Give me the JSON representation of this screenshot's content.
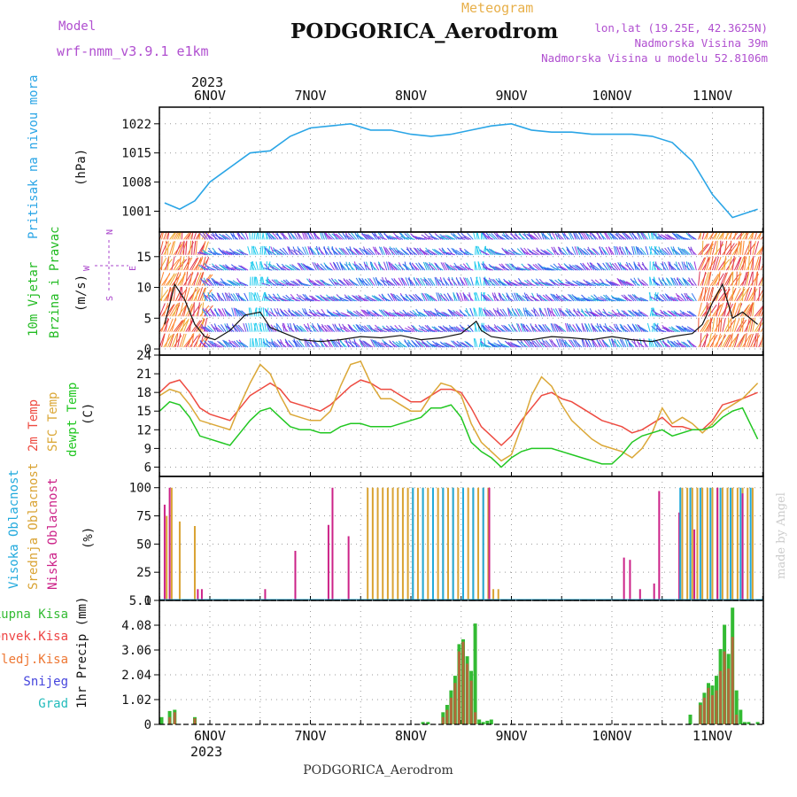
{
  "header": {
    "model_label": "Model",
    "model_name": "wrf-nmm_v3.9.1 e1km",
    "title": "PODGORICA_Aerodrom",
    "subtitle": "Meteogram",
    "lonlat": "lon,lat (19.25E, 42.3625N)",
    "elevation": "Nadmorska Visina 39m",
    "model_elevation": "Nadmorska Visina u modelu 52.8106m",
    "year_top": "2023",
    "year_bottom": "2023",
    "footer": "PODGORICA_Aerodrom",
    "watermark": "made by Angel"
  },
  "colors": {
    "pressure": "#2aa5e6",
    "temp2m": "#ee4b41",
    "sfc_temp": "#dba838",
    "dewpoint": "#22c722",
    "high_cloud": "#22aadd",
    "mid_cloud": "#d9a333",
    "low_cloud": "#cc2288",
    "total_precip": "#33bb33",
    "conv_precip": "#ee4444",
    "frz_precip": "#ee7733",
    "snow": "#4444dd",
    "hail": "#22bbbb",
    "wind_label": "#22bb22",
    "wind_dir_label": "#aa44cc"
  },
  "chart_data": [
    {
      "type": "line",
      "panel": "pressure",
      "ylabel_main": "Pritisak na nivou mora",
      "ylabel_unit": "(hPa)",
      "x_tick_labels": [
        "6NOV",
        "7NOV",
        "8NOV",
        "9NOV",
        "10NOV",
        "11NOV"
      ],
      "x_days": [
        0.5,
        1,
        1.5,
        2,
        2.5,
        3,
        3.5,
        4,
        4.5,
        5,
        5.5,
        6,
        6.5
      ],
      "ylim": [
        996,
        1026
      ],
      "yticks": [
        1001,
        1008,
        1015,
        1022
      ],
      "series": [
        {
          "x": [
            0.55,
            0.7,
            0.85,
            1.0,
            1.2,
            1.4,
            1.6,
            1.8,
            2.0,
            2.2,
            2.4,
            2.6,
            2.8,
            3.0,
            3.2,
            3.4,
            3.6,
            3.8,
            4.0,
            4.2,
            4.4,
            4.6,
            4.8,
            5.0,
            5.2,
            5.4,
            5.6,
            5.8,
            6.0,
            6.2,
            6.45
          ],
          "values": [
            1003,
            1001.5,
            1003.5,
            1008,
            1011.5,
            1015,
            1015.5,
            1019,
            1021,
            1021.5,
            1022,
            1020.5,
            1020.5,
            1019.5,
            1019,
            1019.5,
            1020.5,
            1021.5,
            1022,
            1020.5,
            1020,
            1020,
            1019.5,
            1019.5,
            1019.5,
            1019,
            1017.5,
            1013,
            1005,
            999.5,
            1001.5
          ]
        }
      ]
    },
    {
      "type": "line",
      "panel": "wind",
      "ylabel_main": "10m Vjetar",
      "ylabel_sub": "Brzina i Pravac",
      "ylabel_unit": "(m/s)",
      "direction_key": [
        "N",
        "E",
        "W",
        "S"
      ],
      "ylim": [
        -1,
        19
      ],
      "yticks": [
        0,
        5,
        10,
        15
      ],
      "series": [
        {
          "name": "speed",
          "x": [
            0.55,
            0.65,
            0.75,
            0.85,
            0.95,
            1.05,
            1.2,
            1.35,
            1.5,
            1.6,
            1.75,
            1.9,
            2.1,
            2.3,
            2.5,
            2.7,
            2.9,
            3.1,
            3.3,
            3.5,
            3.65,
            3.7,
            3.8,
            4.0,
            4.2,
            4.4,
            4.6,
            4.8,
            5.0,
            5.2,
            5.4,
            5.6,
            5.8,
            5.9,
            6.0,
            6.1,
            6.2,
            6.3,
            6.45
          ],
          "values": [
            4,
            10.5,
            8,
            4,
            2,
            1.5,
            3,
            5.5,
            6,
            3.5,
            2.5,
            1.5,
            1.2,
            1.5,
            2,
            1.8,
            2.2,
            1.5,
            1.8,
            2.5,
            4.5,
            3,
            2,
            1.5,
            1.5,
            2,
            1.8,
            1.5,
            2,
            1.5,
            1.2,
            2,
            2.5,
            4,
            7.5,
            10.5,
            5,
            6,
            4
          ]
        }
      ]
    },
    {
      "type": "line",
      "panel": "temperature",
      "ylabel_main": "2m Temp",
      "ylabel_sfc": "SFC Temp",
      "ylabel_dew": "dewpt Temp",
      "ylabel_unit": "(C)",
      "ylim": [
        4.5,
        24
      ],
      "yticks": [
        6,
        9,
        12,
        15,
        18,
        21,
        24
      ],
      "series": [
        {
          "name": "2m Temp",
          "x": [
            0.5,
            0.6,
            0.7,
            0.8,
            0.9,
            1.0,
            1.1,
            1.2,
            1.3,
            1.4,
            1.5,
            1.6,
            1.7,
            1.8,
            1.9,
            2.0,
            2.1,
            2.2,
            2.3,
            2.4,
            2.5,
            2.6,
            2.7,
            2.8,
            2.9,
            3.0,
            3.1,
            3.2,
            3.3,
            3.4,
            3.5,
            3.6,
            3.7,
            3.8,
            3.9,
            4.0,
            4.1,
            4.2,
            4.3,
            4.4,
            4.5,
            4.6,
            4.7,
            4.8,
            4.9,
            5.0,
            5.1,
            5.2,
            5.3,
            5.4,
            5.5,
            5.6,
            5.7,
            5.8,
            5.9,
            6.0,
            6.1,
            6.2,
            6.3,
            6.45
          ],
          "values": [
            18,
            19.5,
            20,
            18,
            15.5,
            14.5,
            14,
            13.5,
            15.5,
            17.5,
            18.5,
            19.5,
            18.5,
            16.5,
            16,
            15.5,
            15,
            16,
            17.5,
            19,
            20,
            19.5,
            18.5,
            18.5,
            17.5,
            16.5,
            16.5,
            17.5,
            18.5,
            18.5,
            18,
            15.5,
            12.5,
            11,
            9.5,
            11,
            13.5,
            15.5,
            17.5,
            18,
            17,
            16.5,
            15.5,
            14.5,
            13.5,
            13,
            12.5,
            11.5,
            12,
            13,
            14,
            12.5,
            12.5,
            12,
            12,
            13.5,
            16,
            16.5,
            17,
            18
          ]
        },
        {
          "name": "SFC Temp",
          "x": [
            0.5,
            0.6,
            0.7,
            0.8,
            0.9,
            1.0,
            1.1,
            1.2,
            1.3,
            1.4,
            1.5,
            1.6,
            1.7,
            1.8,
            1.9,
            2.0,
            2.1,
            2.2,
            2.3,
            2.4,
            2.5,
            2.6,
            2.7,
            2.8,
            2.9,
            3.0,
            3.1,
            3.2,
            3.3,
            3.4,
            3.5,
            3.6,
            3.7,
            3.8,
            3.9,
            4.0,
            4.1,
            4.2,
            4.3,
            4.4,
            4.5,
            4.6,
            4.7,
            4.8,
            4.9,
            5.0,
            5.1,
            5.2,
            5.3,
            5.4,
            5.5,
            5.6,
            5.7,
            5.8,
            5.9,
            6.0,
            6.1,
            6.2,
            6.3,
            6.45
          ],
          "values": [
            17.5,
            18.5,
            18,
            16,
            13.5,
            13,
            12.5,
            12,
            16,
            19.5,
            22.5,
            21,
            17.5,
            14.5,
            14,
            13.5,
            13.5,
            15,
            19,
            22.5,
            23,
            19.5,
            17,
            17,
            16,
            15,
            15,
            17.5,
            19.5,
            19,
            17.5,
            13,
            10,
            8.5,
            7,
            8,
            12.5,
            17.5,
            20.5,
            19,
            16,
            13.5,
            12,
            10.5,
            9.5,
            9,
            8.5,
            7.5,
            9,
            11.5,
            15.5,
            13,
            14,
            13,
            11.5,
            13,
            15,
            16,
            17,
            19.5
          ]
        },
        {
          "name": "dewpt Temp",
          "x": [
            0.5,
            0.6,
            0.7,
            0.8,
            0.9,
            1.0,
            1.1,
            1.2,
            1.3,
            1.4,
            1.5,
            1.6,
            1.7,
            1.8,
            1.9,
            2.0,
            2.1,
            2.2,
            2.3,
            2.4,
            2.5,
            2.6,
            2.7,
            2.8,
            2.9,
            3.0,
            3.1,
            3.2,
            3.3,
            3.4,
            3.5,
            3.6,
            3.7,
            3.8,
            3.9,
            4.0,
            4.1,
            4.2,
            4.3,
            4.4,
            4.5,
            4.6,
            4.7,
            4.8,
            4.9,
            5.0,
            5.1,
            5.2,
            5.3,
            5.4,
            5.5,
            5.6,
            5.7,
            5.8,
            5.9,
            6.0,
            6.1,
            6.2,
            6.3,
            6.45
          ],
          "values": [
            15,
            16.5,
            16,
            14,
            11,
            10.5,
            10,
            9.5,
            11.5,
            13.5,
            15,
            15.5,
            14,
            12.5,
            12,
            12,
            11.5,
            11.5,
            12.5,
            13,
            13,
            12.5,
            12.5,
            12.5,
            13,
            13.5,
            14,
            15.5,
            15.5,
            16,
            14,
            10,
            8.5,
            7.5,
            6,
            7.5,
            8.5,
            9,
            9,
            9,
            8.5,
            8,
            7.5,
            7,
            6.5,
            6.5,
            8,
            10,
            11,
            11.5,
            12,
            11,
            11.5,
            12,
            12,
            12.5,
            14,
            15,
            15.5,
            10.5
          ]
        }
      ]
    },
    {
      "type": "bar",
      "panel": "cloud",
      "ylabel_high": "Visoka Oblacnost",
      "ylabel_mid": "Srednja Oblacnost",
      "ylabel_low": "Niska Oblacnost",
      "ylabel_unit": "(%)",
      "ylim": [
        0,
        100
      ],
      "yticks": [
        0,
        25,
        50,
        75,
        100
      ],
      "series": [
        {
          "name": "mid",
          "x": [
            0.57,
            0.62,
            0.7,
            0.85,
            2.57,
            2.62,
            2.67,
            2.72,
            2.77,
            2.82,
            2.87,
            2.92,
            2.97,
            3.02,
            3.07,
            3.12,
            3.17,
            3.22,
            3.27,
            3.32,
            3.37,
            3.42,
            3.47,
            3.52,
            3.57,
            3.62,
            3.67,
            3.72,
            3.77,
            3.82,
            3.87,
            5.7,
            5.75,
            5.8,
            5.85,
            5.9,
            5.95,
            6.0,
            6.05,
            6.1,
            6.15,
            6.2,
            6.25,
            6.3,
            6.35,
            6.4
          ],
          "values": [
            75,
            100,
            70,
            66,
            100,
            100,
            100,
            100,
            100,
            100,
            100,
            100,
            100,
            100,
            100,
            100,
            100,
            100,
            100,
            100,
            100,
            100,
            100,
            100,
            100,
            100,
            100,
            100,
            100,
            10,
            10,
            100,
            100,
            100,
            100,
            100,
            100,
            100,
            100,
            100,
            100,
            100,
            100,
            100,
            100,
            100
          ]
        },
        {
          "name": "low",
          "x": [
            0.55,
            0.6,
            0.88,
            0.92,
            1.55,
            1.85,
            2.18,
            2.22,
            2.38,
            3.78,
            5.12,
            5.18,
            5.28,
            5.42,
            5.47,
            5.67,
            5.82,
            6.05,
            6.3
          ],
          "values": [
            85,
            100,
            10,
            10,
            10,
            44,
            67,
            100,
            57,
            100,
            38,
            36,
            10,
            15,
            97,
            78,
            63,
            100,
            95
          ]
        },
        {
          "name": "high",
          "x": [
            3.02,
            3.12,
            3.22,
            3.32,
            3.42,
            3.52,
            3.62,
            3.72,
            5.68,
            5.78,
            5.88,
            5.98,
            6.08,
            6.18,
            6.28,
            6.38
          ],
          "values": [
            100,
            100,
            100,
            100,
            100,
            100,
            100,
            100,
            100,
            100,
            100,
            100,
            100,
            100,
            100,
            100
          ]
        }
      ]
    },
    {
      "type": "bar",
      "panel": "precip",
      "legend": [
        "Ukupna Kisa",
        "Konvek.Kisa",
        "Zaledj.Kisa",
        "Snijeg",
        "Grad"
      ],
      "ylabel_unit": "1hr Precip (mm)",
      "ylim": [
        0,
        5.1
      ],
      "yticks": [
        0,
        1.02,
        2.04,
        3.06,
        4.08,
        5.1
      ],
      "series": [
        {
          "name": "Ukupna Kisa",
          "x": [
            0.52,
            0.6,
            0.65,
            0.85,
            3.12,
            3.17,
            3.32,
            3.36,
            3.4,
            3.44,
            3.48,
            3.52,
            3.56,
            3.6,
            3.64,
            3.68,
            3.72,
            3.76,
            3.8,
            5.78,
            5.88,
            5.92,
            5.96,
            6.0,
            6.04,
            6.08,
            6.12,
            6.16,
            6.2,
            6.24,
            6.28,
            6.32,
            6.36,
            6.45
          ],
          "values": [
            0.3,
            0.55,
            0.6,
            0.3,
            0.1,
            0.1,
            0.5,
            0.8,
            1.4,
            2.0,
            3.3,
            3.5,
            2.8,
            2.2,
            4.15,
            0.2,
            0.1,
            0.15,
            0.2,
            0.4,
            0.9,
            1.3,
            1.7,
            1.6,
            2.0,
            3.1,
            4.1,
            2.9,
            4.8,
            1.4,
            0.6,
            0.1,
            0.1,
            0.1
          ]
        },
        {
          "name": "Konvek.Kisa",
          "x": [
            0.6,
            0.65,
            0.85,
            3.32,
            3.36,
            3.4,
            3.44,
            3.48,
            3.52,
            3.56,
            3.6,
            3.64,
            5.88,
            5.92,
            5.96,
            6.0,
            6.04,
            6.08,
            6.12,
            6.16,
            6.2,
            6.24
          ],
          "values": [
            0.3,
            0.5,
            0.25,
            0.3,
            0.6,
            1.1,
            1.7,
            3.0,
            3.4,
            2.5,
            1.8,
            0.5,
            0.8,
            1.1,
            1.5,
            1.2,
            1.4,
            2.2,
            3.0,
            2.3,
            3.6,
            0.4
          ]
        }
      ]
    }
  ]
}
